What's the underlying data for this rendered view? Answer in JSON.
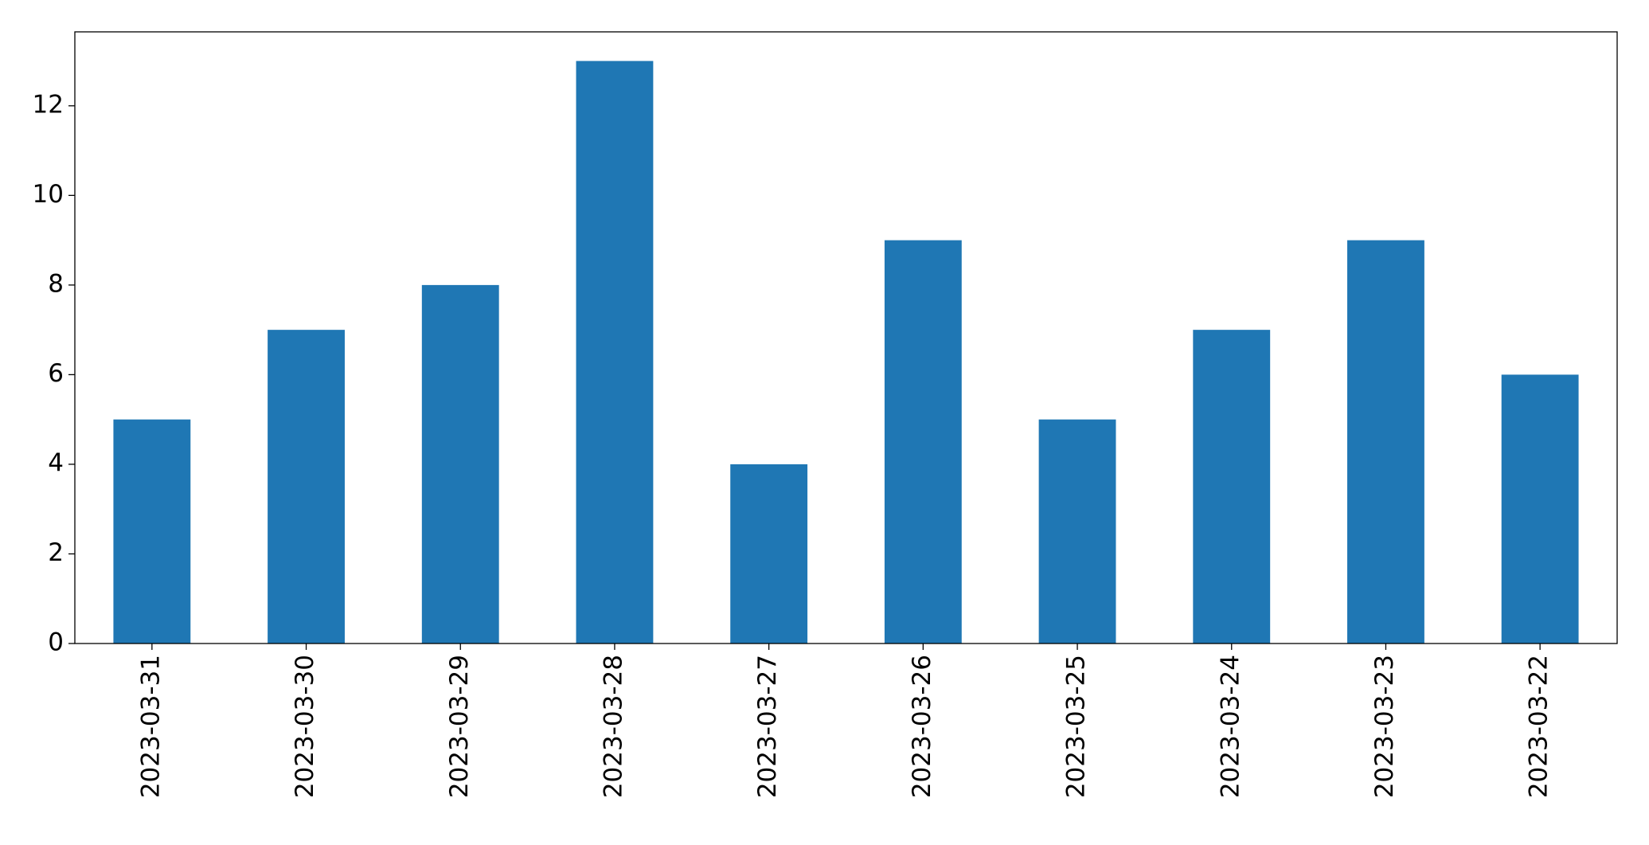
{
  "chart_data": {
    "type": "bar",
    "categories": [
      "2023-03-31",
      "2023-03-30",
      "2023-03-29",
      "2023-03-28",
      "2023-03-27",
      "2023-03-26",
      "2023-03-25",
      "2023-03-24",
      "2023-03-23",
      "2023-03-22"
    ],
    "values": [
      5,
      7,
      8,
      13,
      4,
      9,
      5,
      7,
      9,
      6
    ],
    "color": "#1f77b4",
    "ylim": [
      0,
      13.65
    ],
    "yticks": [
      0,
      2,
      4,
      6,
      8,
      10,
      12
    ],
    "grid": false
  }
}
